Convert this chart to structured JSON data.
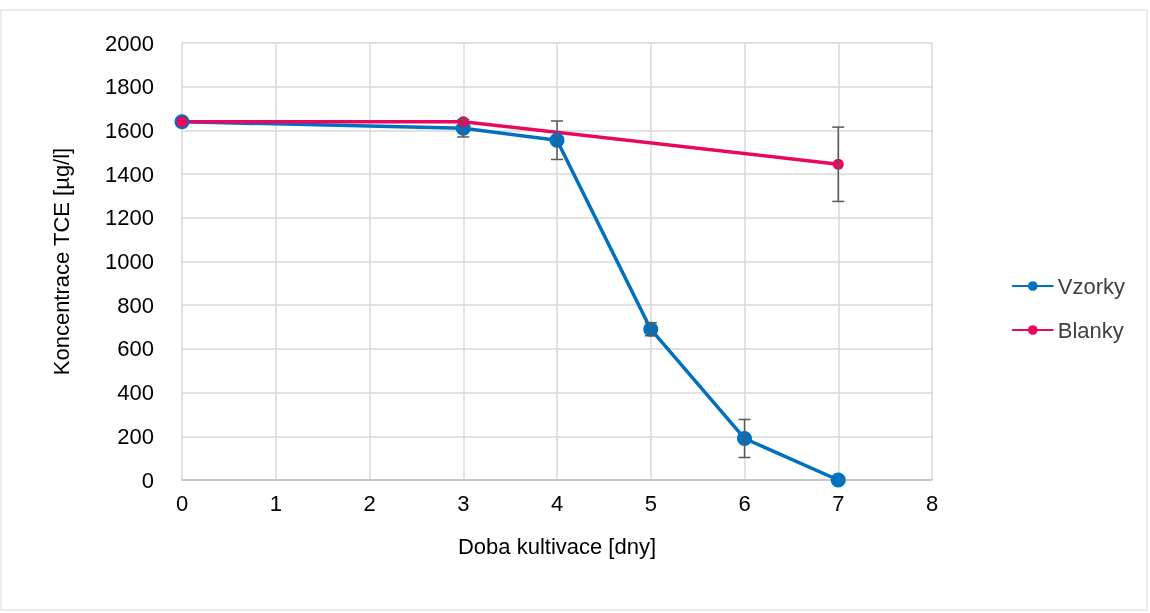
{
  "chart_data": {
    "type": "line",
    "xlabel": "Doba kultivace [dny]",
    "ylabel": "Koncentrace TCE [µg/l]",
    "x": [
      0,
      3,
      4,
      5,
      6,
      7
    ],
    "series": [
      {
        "name": "Vzorky",
        "color": "#0070c0",
        "values": [
          1640,
          1610,
          1555,
          690,
          190,
          0
        ],
        "errors": [
          null,
          40,
          88,
          30,
          87,
          null
        ]
      },
      {
        "name": "Blanky",
        "color": "#e8085e",
        "x": [
          0,
          3,
          7
        ],
        "values": [
          1640,
          1640,
          1445
        ],
        "errors": [
          null,
          null,
          170
        ]
      }
    ],
    "xlim": [
      0,
      8
    ],
    "xticks": [
      0,
      1,
      2,
      3,
      4,
      5,
      6,
      7,
      8
    ],
    "ylim": [
      0,
      2000
    ],
    "yticks": [
      0,
      200,
      400,
      600,
      800,
      1000,
      1200,
      1400,
      1600,
      1800,
      2000
    ],
    "grid": true,
    "legend": "right",
    "marker": "circle",
    "line_style": "solid"
  }
}
